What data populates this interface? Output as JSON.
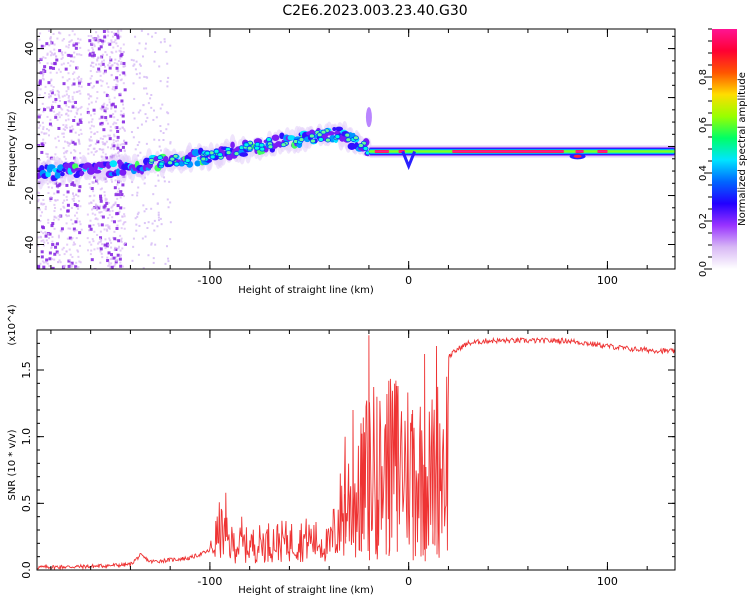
{
  "figure": {
    "title": "C2E6.2023.003.23.40.G30"
  },
  "chart_data": [
    {
      "type": "heatmap",
      "panel": "top",
      "xlabel": "Height of straight line (km)",
      "ylabel": "Frequency (Hz)",
      "xlim": [
        -187,
        134
      ],
      "ylim": [
        -50,
        48
      ],
      "xticks": [
        -100,
        0,
        100
      ],
      "xtick_labels": [
        "-100",
        "0",
        "100"
      ],
      "yticks": [
        -40,
        -20,
        0,
        20,
        40
      ],
      "ytick_labels": [
        "-40",
        "-20",
        "0",
        "20",
        "40"
      ],
      "colorbar": {
        "label": "Normalized spectral amplitude",
        "range": [
          0,
          1
        ],
        "ticks": [
          0.0,
          0.2,
          0.4,
          0.6,
          0.8
        ],
        "tick_labels": [
          "0.0",
          "0.2",
          "0.4",
          "0.6",
          "0.8"
        ],
        "colormap": [
          "#ffffff",
          "#d8b8f5",
          "#9933ff",
          "#2200ff",
          "#0066ff",
          "#00e5ff",
          "#00ff66",
          "#99ff00",
          "#ffdd00",
          "#ff5500",
          "#ff0033",
          "#ff1493"
        ]
      },
      "ridge": {
        "x": [
          -187,
          -170,
          -150,
          -130,
          -110,
          -90,
          -70,
          -50,
          -35,
          -22,
          -18,
          0,
          40,
          80,
          100,
          134
        ],
        "y": [
          -11,
          -10,
          -9,
          -7,
          -5,
          -2,
          1,
          4,
          5,
          0,
          -2,
          -2,
          -2,
          -2,
          -2,
          -2
        ]
      },
      "noise_band_x": [
        [
          -187,
          -165
        ],
        [
          -162,
          -143
        ]
      ]
    },
    {
      "type": "line",
      "panel": "bottom",
      "xlabel": "Height of straight line (km)",
      "ylabel": "SNR (10 * v/v)",
      "y_multiplier": "(x10^4)",
      "xlim": [
        -187,
        134
      ],
      "ylim": [
        0,
        1.8
      ],
      "xticks": [
        -100,
        0,
        100
      ],
      "xtick_labels": [
        "-100",
        "0",
        "100"
      ],
      "yticks": [
        0,
        0.5,
        1.0,
        1.5
      ],
      "ytick_labels": [
        "0.0",
        "0.5",
        "1.0",
        "1.5"
      ],
      "color": "#ee3333",
      "envelope": {
        "x": [
          -187,
          -160,
          -140,
          -135,
          -130,
          -110,
          -100,
          -95,
          -90,
          -80,
          -70,
          -60,
          -50,
          -40,
          -35,
          -30,
          -25,
          -20,
          -15,
          -10,
          -5,
          0,
          5,
          10,
          15,
          20,
          25,
          30,
          40,
          60,
          80,
          90,
          100,
          110,
          120,
          134
        ],
        "y": [
          0.02,
          0.03,
          0.05,
          0.15,
          0.08,
          0.12,
          0.2,
          0.5,
          0.32,
          0.3,
          0.35,
          0.35,
          0.38,
          0.3,
          0.7,
          0.95,
          0.9,
          1.4,
          1.3,
          1.35,
          1.5,
          1.4,
          1.35,
          1.2,
          1.42,
          1.6,
          1.66,
          1.7,
          1.72,
          1.72,
          1.72,
          1.7,
          1.68,
          1.66,
          1.65,
          1.64
        ]
      },
      "spikes": [
        {
          "x": -92,
          "y": 0.58
        },
        {
          "x": -84,
          "y": 0.4
        },
        {
          "x": -32,
          "y": 1.0
        },
        {
          "x": -28,
          "y": 1.2
        },
        {
          "x": -24,
          "y": 1.1
        },
        {
          "x": -20,
          "y": 1.76
        },
        {
          "x": -16,
          "y": 1.3
        },
        {
          "x": -10,
          "y": 1.42
        },
        {
          "x": -6,
          "y": 1.38
        },
        {
          "x": 2,
          "y": 1.2
        },
        {
          "x": 8,
          "y": 1.62
        },
        {
          "x": 12,
          "y": 0.5
        },
        {
          "x": 14,
          "y": 1.68
        }
      ]
    }
  ]
}
